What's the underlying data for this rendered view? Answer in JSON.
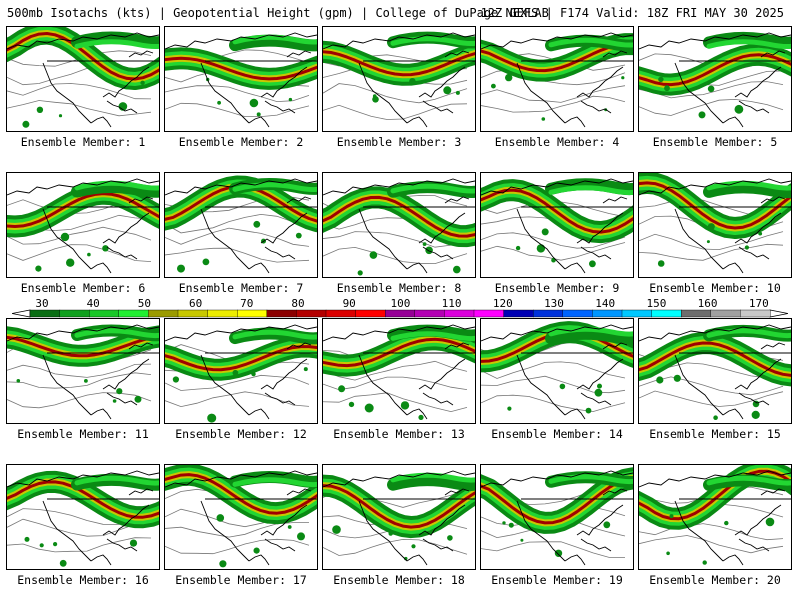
{
  "header": {
    "left": "500mb Isotachs (kts) | Geopotential Height (gpm) | College of DuPage NEXLAB",
    "right": "12Z GEFS | F174 Valid: 18Z FRI MAY 30 2025"
  },
  "members": [
    {
      "label": "Ensemble Member: 1"
    },
    {
      "label": "Ensemble Member: 2"
    },
    {
      "label": "Ensemble Member: 3"
    },
    {
      "label": "Ensemble Member: 4"
    },
    {
      "label": "Ensemble Member: 5"
    },
    {
      "label": "Ensemble Member: 6"
    },
    {
      "label": "Ensemble Member: 7"
    },
    {
      "label": "Ensemble Member: 8"
    },
    {
      "label": "Ensemble Member: 9"
    },
    {
      "label": "Ensemble Member: 10"
    },
    {
      "label": "Ensemble Member: 11"
    },
    {
      "label": "Ensemble Member: 12"
    },
    {
      "label": "Ensemble Member: 13"
    },
    {
      "label": "Ensemble Member: 14"
    },
    {
      "label": "Ensemble Member: 15"
    },
    {
      "label": "Ensemble Member: 16"
    },
    {
      "label": "Ensemble Member: 17"
    },
    {
      "label": "Ensemble Member: 18"
    },
    {
      "label": "Ensemble Member: 19"
    },
    {
      "label": "Ensemble Member: 20"
    }
  ],
  "colorbar": {
    "ticks": [
      "30",
      "40",
      "50",
      "60",
      "70",
      "80",
      "90",
      "100",
      "110",
      "120",
      "130",
      "140",
      "150",
      "160",
      "170"
    ],
    "colors": [
      "#0a6e14",
      "#0fa01e",
      "#19c828",
      "#22f032",
      "#9b9b00",
      "#c8c800",
      "#eded00",
      "#ffff00",
      "#8b0000",
      "#b40000",
      "#dc0000",
      "#ff0000",
      "#960096",
      "#b400b4",
      "#dc00dc",
      "#ff00ff",
      "#0000b4",
      "#0032dc",
      "#0064ff",
      "#0096ff",
      "#00c8ff",
      "#00ffff",
      "#6e6e6e",
      "#a0a0a0",
      "#c8c8c8"
    ]
  },
  "map_colors": {
    "jet_weak": "#0a8a14",
    "jet_mid": "#22d632",
    "jet_strong": "#c8c800",
    "jet_core": "#a00000",
    "height_contour": "#000000",
    "border": "#000000"
  }
}
